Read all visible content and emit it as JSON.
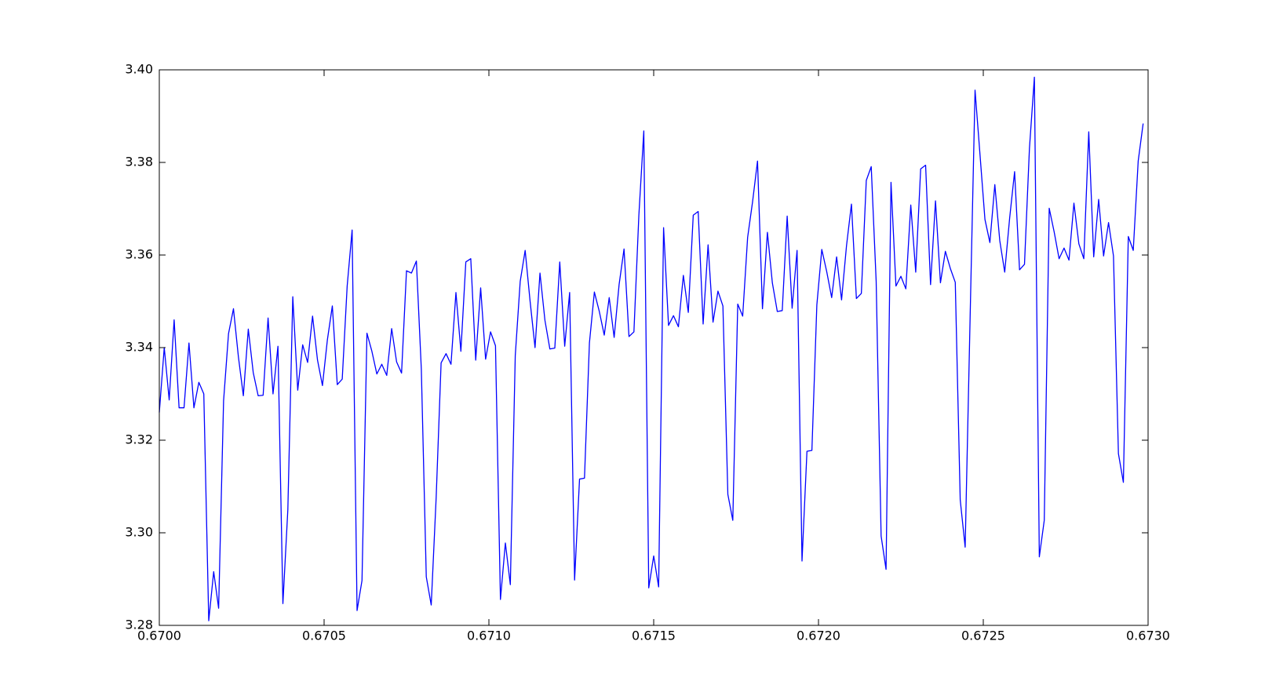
{
  "chart_data": {
    "type": "line",
    "x": [
      0.67,
      0.670015,
      0.67003,
      0.670045,
      0.67006,
      0.670075,
      0.67009,
      0.670105,
      0.67012,
      0.670135,
      0.67015,
      0.670165,
      0.67018,
      0.670195,
      0.67021,
      0.670225,
      0.67024,
      0.670255,
      0.67027,
      0.670285,
      0.6703,
      0.670315,
      0.67033,
      0.670345,
      0.67036,
      0.670375,
      0.67039,
      0.670405,
      0.67042,
      0.670435,
      0.67045,
      0.670465,
      0.67048,
      0.670495,
      0.67051,
      0.670525,
      0.67054,
      0.670555,
      0.67057,
      0.670585,
      0.6706,
      0.670615,
      0.67063,
      0.670645,
      0.67066,
      0.670675,
      0.67069,
      0.670705,
      0.67072,
      0.670735,
      0.67075,
      0.670765,
      0.67078,
      0.670795,
      0.67081,
      0.670825,
      0.67084,
      0.670855,
      0.67087,
      0.670885,
      0.6709,
      0.670915,
      0.67093,
      0.670945,
      0.67096,
      0.670975,
      0.67099,
      0.671005,
      0.67102,
      0.671035,
      0.67105,
      0.671065,
      0.67108,
      0.671095,
      0.67111,
      0.671125,
      0.67114,
      0.671155,
      0.67117,
      0.671185,
      0.6712,
      0.671215,
      0.67123,
      0.671245,
      0.67126,
      0.671275,
      0.67129,
      0.671305,
      0.67132,
      0.671335,
      0.67135,
      0.671365,
      0.67138,
      0.671395,
      0.67141,
      0.671425,
      0.67144,
      0.671455,
      0.67147,
      0.671485,
      0.6715,
      0.671515,
      0.67153,
      0.671545,
      0.67156,
      0.671575,
      0.67159,
      0.671605,
      0.67162,
      0.671635,
      0.67165,
      0.671665,
      0.67168,
      0.671695,
      0.67171,
      0.671725,
      0.67174,
      0.671755,
      0.67177,
      0.671785,
      0.6718,
      0.671815,
      0.67183,
      0.671845,
      0.67186,
      0.671875,
      0.67189,
      0.671905,
      0.67192,
      0.671935,
      0.67195,
      0.671965,
      0.67198,
      0.671995,
      0.67201,
      0.672025,
      0.67204,
      0.672055,
      0.67207,
      0.672085,
      0.6721,
      0.672115,
      0.67213,
      0.672145,
      0.67216,
      0.672175,
      0.67219,
      0.672205,
      0.67222,
      0.672235,
      0.67225,
      0.672265,
      0.67228,
      0.672295,
      0.67231,
      0.672325,
      0.67234,
      0.672355,
      0.67237,
      0.672385,
      0.6724,
      0.672415,
      0.67243,
      0.672445,
      0.67246,
      0.672475,
      0.67249,
      0.672505,
      0.67252,
      0.672535,
      0.67255,
      0.672565,
      0.67258,
      0.672595,
      0.67261,
      0.672625,
      0.67264,
      0.672655,
      0.67267,
      0.672685,
      0.6727,
      0.672715,
      0.67273,
      0.672745,
      0.67276,
      0.672775,
      0.67279,
      0.672805,
      0.67282,
      0.672835,
      0.67285,
      0.672865,
      0.67288,
      0.672895,
      0.67291,
      0.672925,
      0.67294,
      0.672955,
      0.67297,
      0.672985
    ],
    "series": [
      {
        "color": "#0000ff",
        "values": [
          3.326,
          3.34,
          3.3287,
          3.346,
          3.327,
          3.327,
          3.341,
          3.327,
          3.3325,
          3.33,
          3.281,
          3.2916,
          3.2837,
          3.3285,
          3.343,
          3.3484,
          3.338,
          3.3296,
          3.344,
          3.3346,
          3.3296,
          3.3297,
          3.3464,
          3.33,
          3.3403,
          3.2847,
          3.305,
          3.351,
          3.3308,
          3.3406,
          3.3368,
          3.3468,
          3.3373,
          3.3318,
          3.3417,
          3.349,
          3.332,
          3.3332,
          3.3533,
          3.3654,
          3.2832,
          3.2897,
          3.3431,
          3.3392,
          3.3343,
          3.3364,
          3.334,
          3.3441,
          3.3369,
          3.3345,
          3.3566,
          3.3561,
          3.3587,
          3.3353,
          3.2905,
          3.2844,
          3.3076,
          3.3367,
          3.3387,
          3.3364,
          3.3519,
          3.3392,
          3.3585,
          3.3592,
          3.3373,
          3.3529,
          3.3375,
          3.3434,
          3.3404,
          3.2856,
          3.2978,
          3.2888,
          3.3383,
          3.3543,
          3.361,
          3.35,
          3.34,
          3.3561,
          3.3459,
          3.3397,
          3.3399,
          3.3585,
          3.3403,
          3.3519,
          3.2898,
          3.3116,
          3.3118,
          3.341,
          3.352,
          3.3478,
          3.3427,
          3.3508,
          3.3422,
          3.3536,
          3.3613,
          3.3424,
          3.3434,
          3.3686,
          3.3868,
          3.2881,
          3.295,
          3.2883,
          3.3659,
          3.3448,
          3.3469,
          3.3445,
          3.3556,
          3.3476,
          3.3686,
          3.3694,
          3.3451,
          3.3622,
          3.3455,
          3.3522,
          3.349,
          3.3083,
          3.3027,
          3.3494,
          3.3468,
          3.3638,
          3.3715,
          3.3803,
          3.3484,
          3.3649,
          3.354,
          3.3478,
          3.348,
          3.3684,
          3.3485,
          3.361,
          3.2939,
          3.3176,
          3.3178,
          3.3492,
          3.3612,
          3.3564,
          3.3508,
          3.3596,
          3.3503,
          3.362,
          3.371,
          3.3506,
          3.3517,
          3.3761,
          3.3791,
          3.3543,
          3.2993,
          3.2921,
          3.3757,
          3.3533,
          3.3554,
          3.3527,
          3.3708,
          3.3563,
          3.3786,
          3.3794,
          3.3536,
          3.3717,
          3.354,
          3.3608,
          3.3571,
          3.3541,
          3.3071,
          3.2969,
          3.3464,
          3.3956,
          3.3817,
          3.3677,
          3.3627,
          3.3752,
          3.3631,
          3.3563,
          3.368,
          3.378,
          3.3568,
          3.358,
          3.383,
          3.3984,
          3.2948,
          3.3027,
          3.3701,
          3.365,
          3.3592,
          3.3615,
          3.3589,
          3.3712,
          3.3624,
          3.3592,
          3.3866,
          3.3596,
          3.372,
          3.3598,
          3.367,
          3.3598,
          3.3171,
          3.3109,
          3.364,
          3.361,
          3.3803,
          3.3884
        ]
      }
    ],
    "xlim": [
      0.67,
      0.673
    ],
    "xticks": [
      {
        "value": 0.67,
        "label": "0.6700"
      },
      {
        "value": 0.6705,
        "label": "0.6705"
      },
      {
        "value": 0.671,
        "label": "0.6710"
      },
      {
        "value": 0.6715,
        "label": "0.6715"
      },
      {
        "value": 0.672,
        "label": "0.6720"
      },
      {
        "value": 0.6725,
        "label": "0.6725"
      },
      {
        "value": 0.673,
        "label": "0.6730"
      }
    ],
    "ylim": [
      3.28,
      3.4
    ],
    "yticks": [
      3.28,
      {
        "value": 3.3,
        "label": "3.30"
      },
      3.32,
      3.34,
      3.36,
      3.38,
      {
        "value": 3.4,
        "label": "3.40"
      }
    ]
  }
}
